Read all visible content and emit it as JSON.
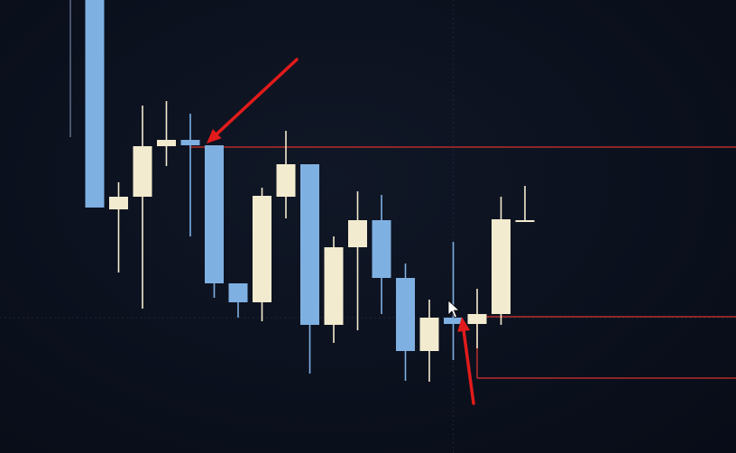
{
  "chart_data": {
    "type": "candlestick",
    "title": "",
    "xlabel": "",
    "ylabel": "",
    "grid": false,
    "legend": "none",
    "up_color": "#f3ebcf",
    "down_color": "#7fb0e2",
    "level_color": "#d8332d",
    "arrow_color": "#e11b1b",
    "crosshair_color": "#1c2538",
    "cursor": "arrow-pointer-icon",
    "ylim": [
      0,
      502
    ],
    "candles": [
      {
        "x": 1,
        "open": 502,
        "close": 272,
        "high": 502,
        "low": 272
      },
      {
        "x": 2,
        "open": 270,
        "close": 284,
        "high": 300,
        "low": 200
      },
      {
        "x": 3,
        "open": 284,
        "close": 340,
        "high": 385,
        "low": 160
      },
      {
        "x": 4,
        "open": 340,
        "close": 347,
        "high": 390,
        "low": 318
      },
      {
        "x": 5,
        "open": 347,
        "close": 341,
        "high": 376,
        "low": 240
      },
      {
        "x": 6,
        "open": 341,
        "close": 188,
        "high": 341,
        "low": 172
      },
      {
        "x": 7,
        "open": 188,
        "close": 167,
        "high": 188,
        "low": 150
      },
      {
        "x": 8,
        "open": 167,
        "close": 285,
        "high": 294,
        "low": 146
      },
      {
        "x": 9,
        "open": 284,
        "close": 320,
        "high": 357,
        "low": 260
      },
      {
        "x": 10,
        "open": 320,
        "close": 142,
        "high": 320,
        "low": 88
      },
      {
        "x": 11,
        "open": 142,
        "close": 228,
        "high": 240,
        "low": 122
      },
      {
        "x": 12,
        "open": 228,
        "close": 258,
        "high": 290,
        "low": 136
      },
      {
        "x": 13,
        "open": 258,
        "close": 194,
        "high": 286,
        "low": 154
      },
      {
        "x": 14,
        "open": 194,
        "close": 113,
        "high": 210,
        "low": 80
      },
      {
        "x": 15,
        "open": 113,
        "close": 150,
        "high": 170,
        "low": 79
      },
      {
        "x": 16,
        "open": 150,
        "close": 143,
        "high": 234,
        "low": 103
      },
      {
        "x": 17,
        "open": 143,
        "close": 154,
        "high": 182,
        "low": 116
      },
      {
        "x": 18,
        "open": 154,
        "close": 259,
        "high": 284,
        "low": 142
      },
      {
        "x": 19,
        "open": 258,
        "close": 258,
        "high": 296,
        "low": 258
      }
    ],
    "level_lines": [
      {
        "y": 339,
        "from_x": 5
      },
      {
        "y": 151,
        "from_x": 17
      },
      {
        "y": 83,
        "from_x": 17,
        "hook_top": 143
      }
    ],
    "crosshair": {
      "x": 16,
      "y": 150
    },
    "arrows": [
      {
        "from": [
          329,
          66
        ],
        "to": [
          229,
          159
        ]
      },
      {
        "from": [
          525,
          447
        ],
        "to": [
          512,
          351
        ]
      }
    ]
  }
}
